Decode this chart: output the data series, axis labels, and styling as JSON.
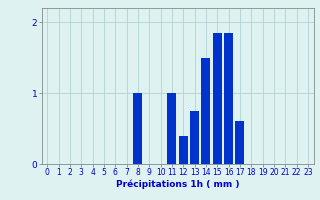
{
  "hours": [
    0,
    1,
    2,
    3,
    4,
    5,
    6,
    7,
    8,
    9,
    10,
    11,
    12,
    13,
    14,
    15,
    16,
    17,
    18,
    19,
    20,
    21,
    22,
    23
  ],
  "values": [
    0,
    0,
    0,
    0,
    0,
    0,
    0,
    0,
    1.0,
    0,
    0,
    1.0,
    0.4,
    0.75,
    1.5,
    1.85,
    1.85,
    0.6,
    0,
    0,
    0,
    0,
    0,
    0
  ],
  "bar_color": "#0033cc",
  "background_color": "#dff2f2",
  "grid_color": "#aacccc",
  "axis_color": "#777777",
  "text_color": "#0000cc",
  "xlabel": "Précipitations 1h ( mm )",
  "ylim": [
    0,
    2.2
  ],
  "yticks": [
    0,
    1,
    2
  ],
  "xlabel_fontsize": 6.5,
  "tick_fontsize": 5.5
}
